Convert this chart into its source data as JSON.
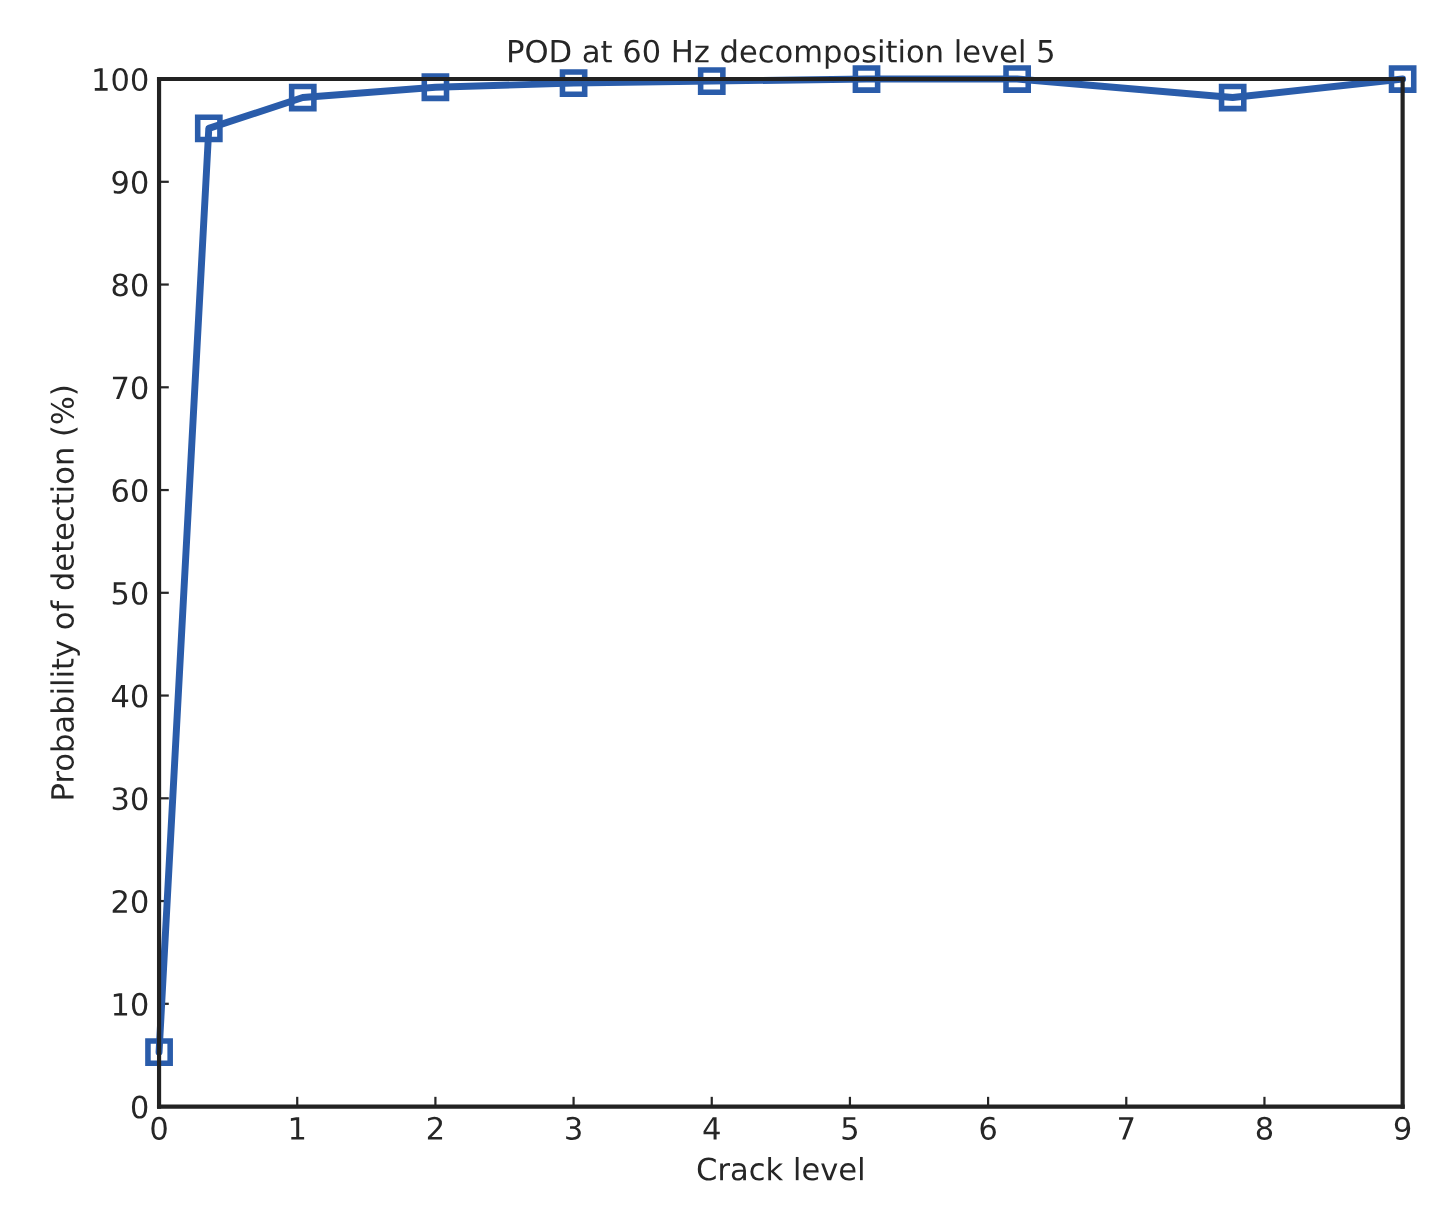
{
  "chart_data": {
    "type": "line",
    "title": "POD at 60 Hz decomposition level 5",
    "xlabel": "Crack level",
    "ylabel": "Probability of detection (%)",
    "x": [
      0,
      0.36,
      1.04,
      2,
      3,
      4,
      5.12,
      6.21,
      7.77,
      9
    ],
    "series": [
      {
        "color": "#2a5caa",
        "values": [
          5.3,
          95.2,
          98.2,
          99.2,
          99.6,
          99.8,
          100,
          100,
          98.2,
          100
        ]
      }
    ],
    "xlim": [
      0,
      9
    ],
    "ylim": [
      0,
      100
    ],
    "xticks": [
      0,
      1,
      2,
      3,
      4,
      5,
      6,
      7,
      8,
      9
    ],
    "yticks": [
      0,
      10,
      20,
      30,
      40,
      50,
      60,
      70,
      80,
      90,
      100
    ],
    "marker": "square",
    "line_style": "solid",
    "grid": false,
    "legend": false
  }
}
